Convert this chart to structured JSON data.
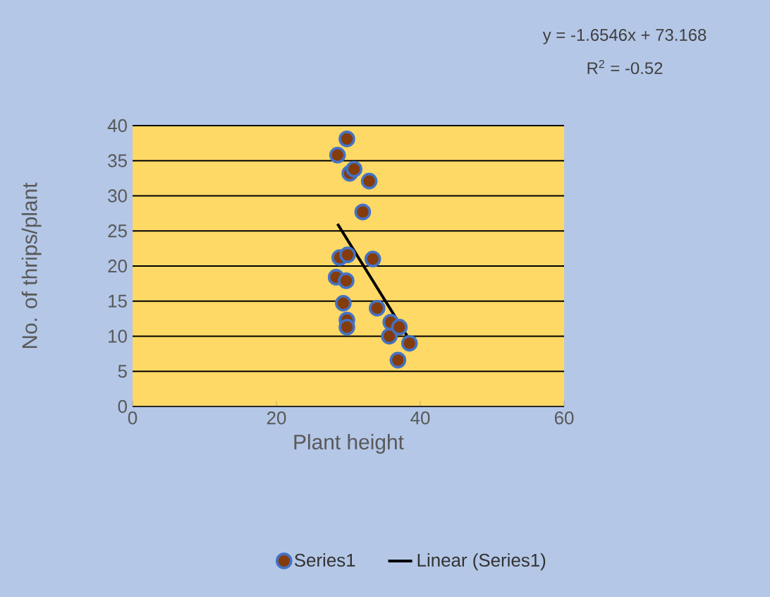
{
  "chart_data": {
    "type": "scatter",
    "xlabel": "Plant height",
    "ylabel": "No. of thrips/plant",
    "xlim": [
      0,
      60
    ],
    "xticks": [
      0,
      20,
      40,
      60
    ],
    "ylim": [
      0,
      40
    ],
    "yticks": [
      0,
      5,
      10,
      15,
      20,
      25,
      30,
      35,
      40
    ],
    "grid": "y",
    "legend": "bottom",
    "annotations": [
      "y = -1.6546x + 73.168",
      "R$^{2}$ = -0.52"
    ],
    "series": [
      {
        "name": "Series1",
        "marker": "circle",
        "color": "#843c0c",
        "x": [
          29.8,
          28.5,
          30.2,
          30.8,
          32.9,
          32.0,
          28.8,
          29.9,
          33.4,
          28.3,
          29.7,
          29.3,
          29.8,
          29.8,
          34.0,
          35.9,
          35.7,
          37.1,
          38.5,
          36.9
        ],
        "values": [
          38.1,
          35.8,
          33.2,
          33.8,
          32.1,
          27.7,
          21.2,
          21.6,
          21.0,
          18.4,
          17.9,
          14.7,
          12.3,
          11.3,
          14.0,
          12.0,
          10.0,
          11.3,
          9.0,
          6.6
        ]
      },
      {
        "name": "Linear (Series1)",
        "type": "line",
        "marker": "none",
        "color": "#000000",
        "x": [
          28.5,
          38.5
        ],
        "values": [
          26.0,
          9.5
        ]
      }
    ]
  }
}
